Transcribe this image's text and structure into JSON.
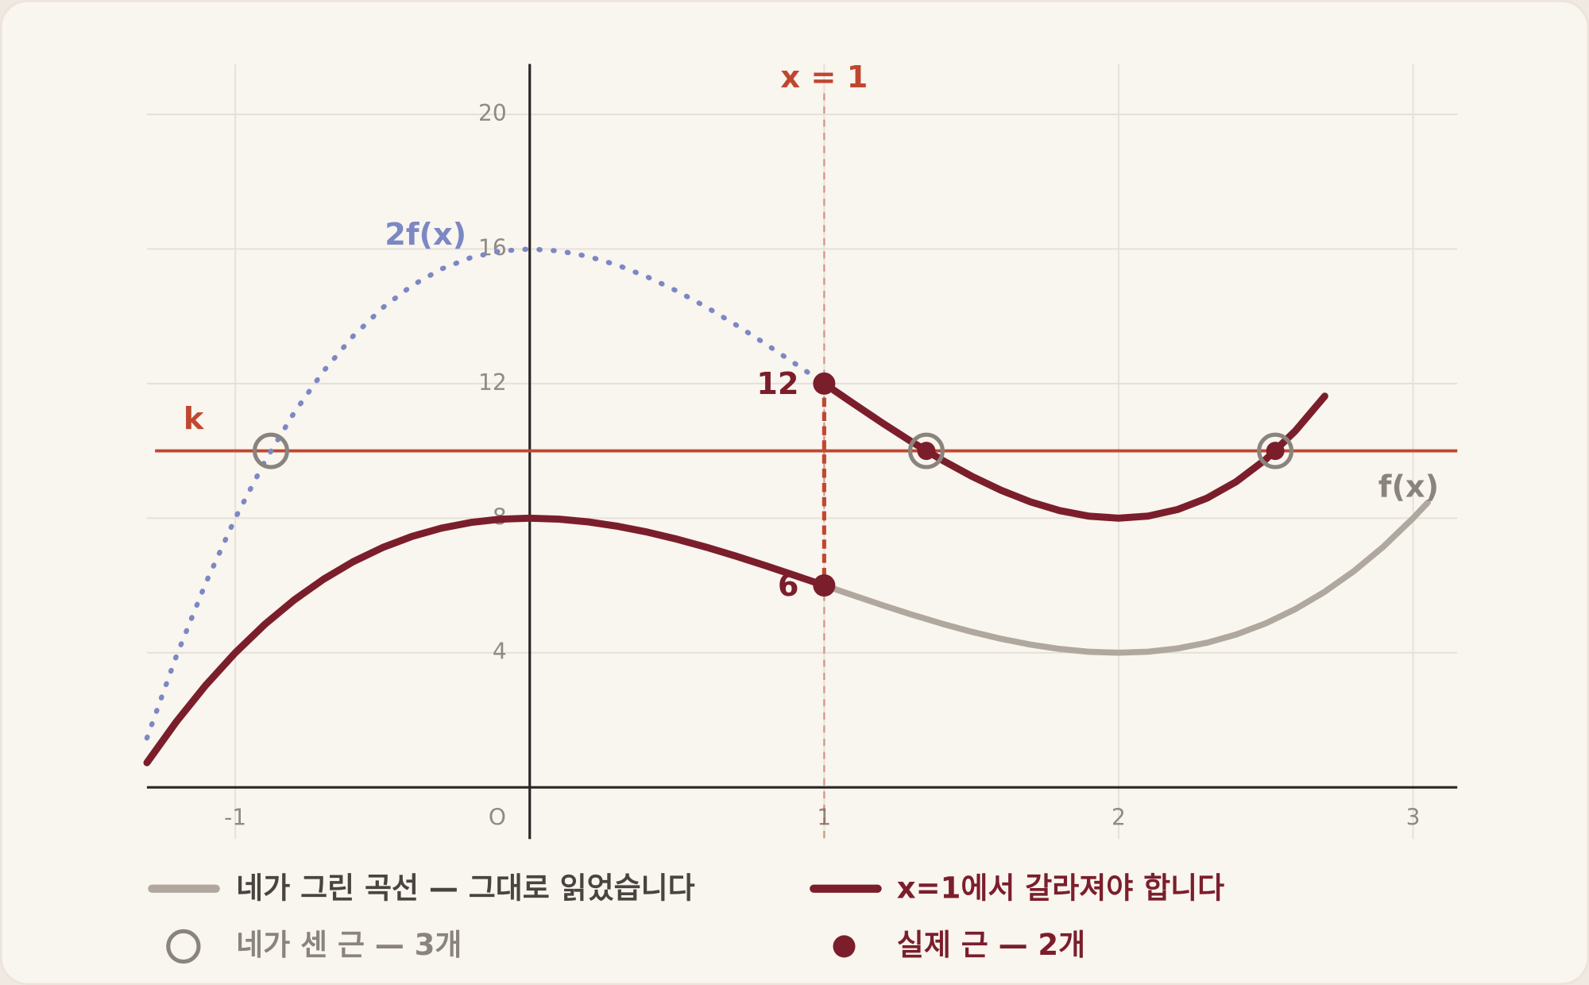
{
  "chart_data": {
    "type": "line",
    "xlim": [
      -1.3,
      3.15
    ],
    "ylim": [
      0,
      21.5
    ],
    "xticks": [
      -1,
      {
        "value": 0,
        "label": "O"
      },
      1,
      2,
      3
    ],
    "yticks": [
      4,
      8,
      12,
      16,
      20
    ],
    "grid": true,
    "series": [
      {
        "name": "네가 그린 곡선 — 그대로 읽었습니다",
        "label": "f(x)",
        "color": "#b0a89f",
        "style": "solid",
        "x": [
          1,
          1.1,
          1.2,
          1.3,
          1.4,
          1.5,
          1.6,
          1.7,
          1.8,
          1.9,
          2,
          2.1,
          2.2,
          2.3,
          2.4,
          2.5,
          2.6,
          2.7,
          2.8,
          2.9,
          3,
          3.05
        ],
        "values": [
          6,
          5.701,
          5.408,
          5.127,
          4.864,
          4.625,
          4.416,
          4.243,
          4.112,
          4.029,
          4,
          4.031,
          4.128,
          4.297,
          4.544,
          4.875,
          5.296,
          5.813,
          6.432,
          7.159,
          8,
          8.465
        ]
      },
      {
        "label": "2f(x)",
        "color": "#7c88c4",
        "style": "dotted",
        "x": [
          -1.3,
          -1.2,
          -1.1,
          -1,
          -0.9,
          -0.8,
          -0.7,
          -0.6,
          -0.5,
          -0.4,
          -0.3,
          -0.2,
          -0.1,
          0,
          0.1,
          0.2,
          0.3,
          0.4,
          0.5,
          0.6,
          0.7,
          0.8,
          0.9,
          1
        ],
        "values": [
          1.466,
          3.904,
          6.078,
          8,
          9.682,
          11.136,
          12.374,
          13.408,
          14.25,
          14.912,
          15.406,
          15.744,
          15.938,
          16,
          15.942,
          15.776,
          15.514,
          15.168,
          14.75,
          14.272,
          13.746,
          13.184,
          12.598,
          12
        ]
      },
      {
        "name": "x=1에서 갈라져야 합니다",
        "color": "#7b1e2b",
        "style": "solid",
        "x": [
          -1.3,
          -1.2,
          -1.1,
          -1,
          -0.9,
          -0.8,
          -0.7,
          -0.6,
          -0.5,
          -0.4,
          -0.3,
          -0.2,
          -0.1,
          0,
          0.1,
          0.2,
          0.3,
          0.4,
          0.5,
          0.6,
          0.7,
          0.8,
          0.9,
          1,
          1,
          1,
          1.1,
          1.2,
          1.3,
          1.4,
          1.5,
          1.6,
          1.7,
          1.8,
          1.9,
          2,
          2.1,
          2.2,
          2.3,
          2.4,
          2.5,
          2.6,
          2.7
        ],
        "values": [
          0.733,
          1.952,
          3.039,
          4,
          4.841,
          5.568,
          6.187,
          6.704,
          7.125,
          7.456,
          7.703,
          7.872,
          7.969,
          8,
          7.971,
          7.888,
          7.757,
          7.584,
          7.375,
          7.136,
          6.873,
          6.592,
          6.299,
          6,
          null,
          12,
          11.402,
          10.816,
          10.254,
          9.728,
          9.25,
          8.832,
          8.486,
          8.224,
          8.058,
          8,
          8.062,
          8.256,
          8.594,
          9.088,
          9.75,
          10.592,
          11.626
        ]
      }
    ],
    "hline": {
      "label": "k",
      "value": 10,
      "color": "#c0472f"
    },
    "vline": {
      "label": "x = 1",
      "value": 1,
      "color": "#c0472f"
    },
    "endpoints": {
      "x": [
        1,
        1
      ],
      "values": [
        12,
        6
      ],
      "color": "#7b1e2b"
    },
    "roots_counted": {
      "name": "네가 센 근 — 3개",
      "color": "#8a847d",
      "x": [
        -0.879,
        1.347,
        2.532
      ],
      "values": [
        10,
        10,
        10
      ]
    },
    "roots_actual": {
      "name": "실제 근 — 2개",
      "color": "#7b1e2b",
      "x": [
        1.347,
        2.532
      ],
      "values": [
        10,
        10
      ]
    }
  }
}
